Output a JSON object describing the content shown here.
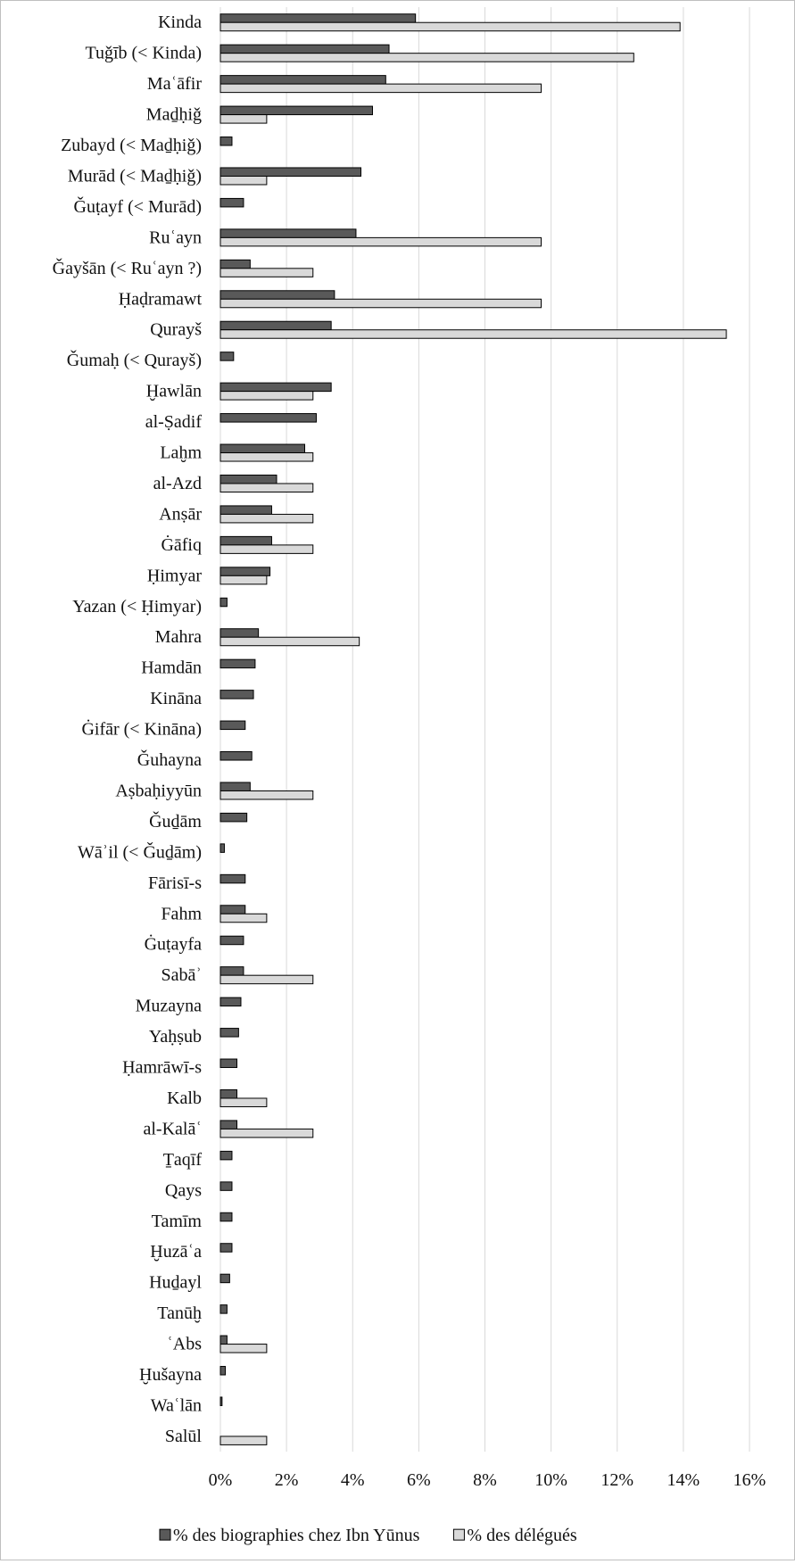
{
  "chart_data": {
    "type": "bar",
    "orientation": "horizontal",
    "title": "",
    "xlabel": "",
    "ylabel": "",
    "xlim": [
      0,
      16
    ],
    "x_ticks": [
      "0%",
      "2%",
      "4%",
      "6%",
      "8%",
      "10%",
      "12%",
      "14%",
      "16%"
    ],
    "grid": "vertical",
    "legend_position": "bottom",
    "categories": [
      "Kinda",
      "Tuǧīb (< Kinda)",
      "Maʿāfir",
      "Maḏḥiǧ",
      "Zubayd (< Maḏḥiǧ)",
      "Murād (< Maḏḥiǧ)",
      "Ǧuṭayf (< Murād)",
      "Ruʿayn",
      "Ǧayšān (< Ruʿayn ?)",
      "Ḥaḍramawt",
      "Qurayš",
      "Ǧumaḥ (< Qurayš)",
      "Ḫawlān",
      "al-Ṣadif",
      "Laḫm",
      "al-Azd",
      "Anṣār",
      "Ġāfiq",
      "Ḥimyar",
      "Yazan (< Ḥimyar)",
      "Mahra",
      "Hamdān",
      "Kināna",
      "Ġifār (< Kināna)",
      "Ǧuhayna",
      "Aṣbaḥiyyūn",
      "Ǧuḏām",
      "Wāʾil (< Ǧuḏām)",
      "Fārisī-s",
      "Fahm",
      "Ġuṭayfa",
      "Sabāʾ",
      "Muzayna",
      "Yaḥṣub",
      "Ḥamrāwī-s",
      "Kalb",
      "al-Kalāʿ",
      "Ṯaqīf",
      "Qays",
      "Tamīm",
      "Ḫuzāʿa",
      "Huḏayl",
      "Tanūḫ",
      "ʿAbs",
      "Ḫušayna",
      "Waʿlān",
      "Salūl"
    ],
    "series": [
      {
        "name": "% des biographies chez Ibn Yūnus",
        "color": "#595959",
        "values": [
          5.9,
          5.1,
          5.0,
          4.6,
          0.35,
          4.25,
          0.7,
          4.1,
          0.9,
          3.45,
          3.35,
          0.4,
          3.35,
          2.9,
          2.55,
          1.7,
          1.55,
          1.55,
          1.5,
          0.2,
          1.15,
          1.05,
          1.0,
          0.75,
          0.95,
          0.9,
          0.8,
          0.12,
          0.75,
          0.75,
          0.7,
          0.7,
          0.62,
          0.55,
          0.5,
          0.5,
          0.5,
          0.35,
          0.35,
          0.35,
          0.35,
          0.28,
          0.2,
          0.2,
          0.15,
          0.05,
          0
        ]
      },
      {
        "name": "% des délégués",
        "color": "#d9d9d9",
        "values": [
          13.9,
          12.5,
          9.7,
          1.4,
          0,
          1.4,
          0,
          9.7,
          2.8,
          9.7,
          15.3,
          0,
          2.8,
          0,
          2.8,
          2.8,
          2.8,
          2.8,
          1.4,
          0,
          4.2,
          0,
          0,
          0,
          0,
          2.8,
          0,
          0,
          0,
          1.4,
          0,
          2.8,
          0,
          0,
          0,
          1.4,
          2.8,
          0,
          0,
          0,
          0,
          0,
          0,
          1.4,
          0,
          0,
          1.4
        ]
      }
    ]
  }
}
